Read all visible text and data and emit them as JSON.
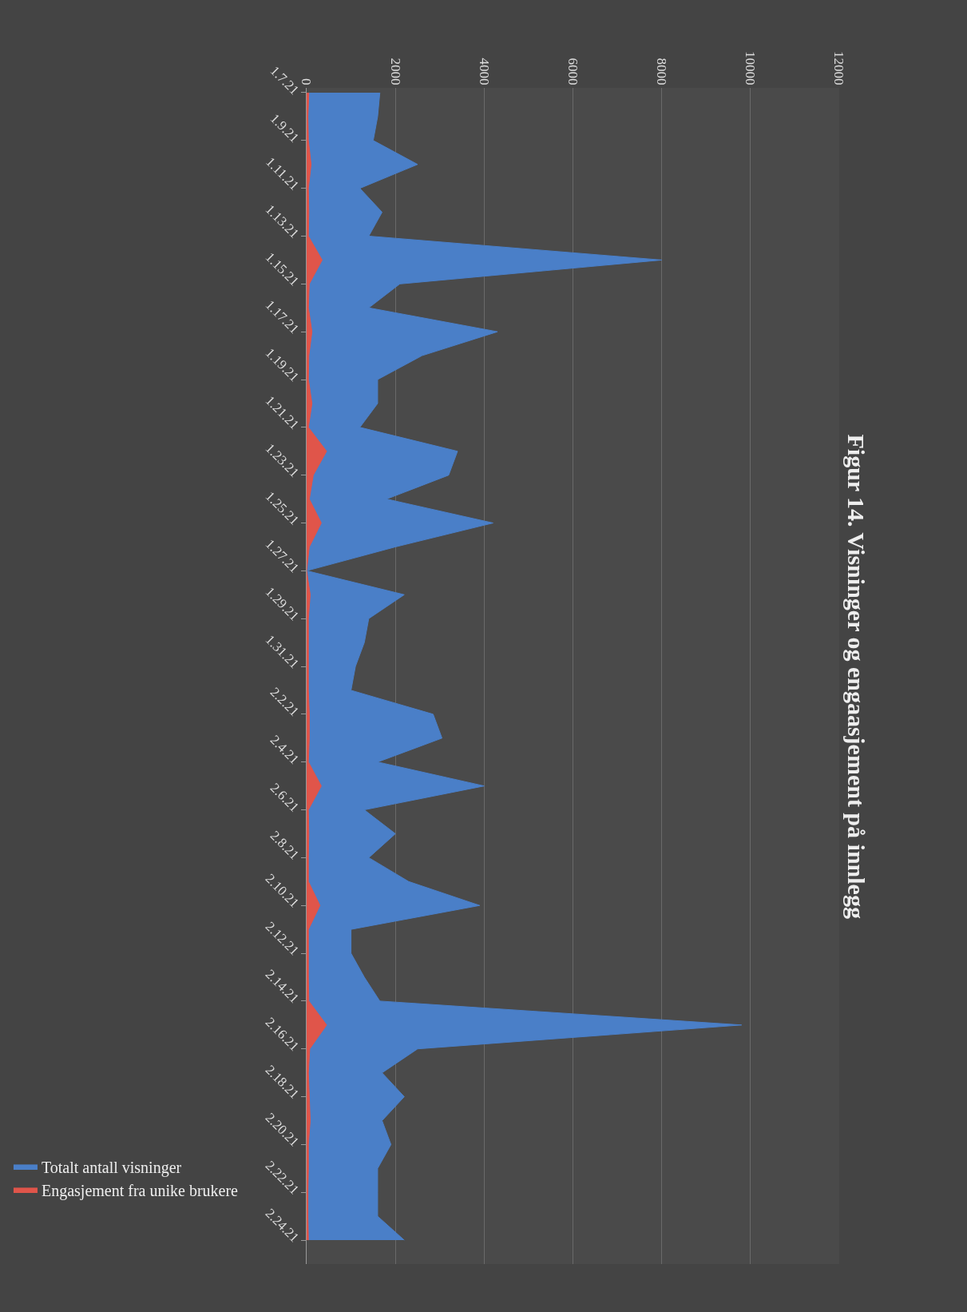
{
  "chart_data": {
    "type": "area",
    "orientation": "horizontal",
    "title": "Figur 14. Visninger og engaasjement på innlegg",
    "categories": [
      "1.7.21",
      null,
      "1.9.21",
      null,
      "1.11.21",
      null,
      "1.13.21",
      null,
      "1.15.21",
      null,
      "1.17.21",
      null,
      "1.19.21",
      null,
      "1.21.21",
      null,
      "1.23.21",
      null,
      "1.25.21",
      null,
      "1.27.21",
      null,
      "1.29.21",
      null,
      "1.31.21",
      null,
      "2.2.21",
      null,
      "2.4.21",
      null,
      "2.6.21",
      null,
      "2.8.21",
      null,
      "2.10.21",
      null,
      "2.12.21",
      null,
      "2.14.21",
      null,
      "2.16.21",
      null,
      "2.18.21",
      null,
      "2.20.21",
      null,
      "2.22.21",
      null,
      "2.24.21"
    ],
    "series": [
      {
        "name": "Totalt antall visninger",
        "color": "#4a7fc8",
        "values": [
          1650,
          1600,
          1500,
          2500,
          1200,
          1700,
          1400,
          8000,
          2100,
          1400,
          4300,
          2600,
          1600,
          1600,
          1200,
          3400,
          3200,
          1800,
          4200,
          2000,
          0,
          2200,
          1400,
          1300,
          1100,
          1000,
          2850,
          3050,
          1600,
          4000,
          1300,
          2000,
          1400,
          2300,
          3900,
          1000,
          1000,
          1300,
          1650,
          9800,
          2500,
          1700,
          2200,
          1700,
          1900,
          1600,
          1600,
          1600,
          2200
        ]
      },
      {
        "name": "Engasjement fra unike brukere",
        "color": "#e0554a",
        "values": [
          50,
          30,
          40,
          100,
          40,
          50,
          40,
          350,
          60,
          40,
          120,
          50,
          40,
          120,
          40,
          450,
          150,
          60,
          330,
          60,
          0,
          80,
          40,
          40,
          40,
          40,
          60,
          60,
          40,
          330,
          40,
          50,
          40,
          40,
          300,
          40,
          40,
          40,
          50,
          450,
          70,
          40,
          60,
          80,
          40,
          40,
          30,
          30,
          40
        ]
      }
    ],
    "xlim": [
      0,
      12000
    ],
    "xticks": [
      0,
      2000,
      4000,
      6000,
      8000,
      10000,
      12000
    ],
    "grid": "x",
    "legend": "bottom left"
  }
}
